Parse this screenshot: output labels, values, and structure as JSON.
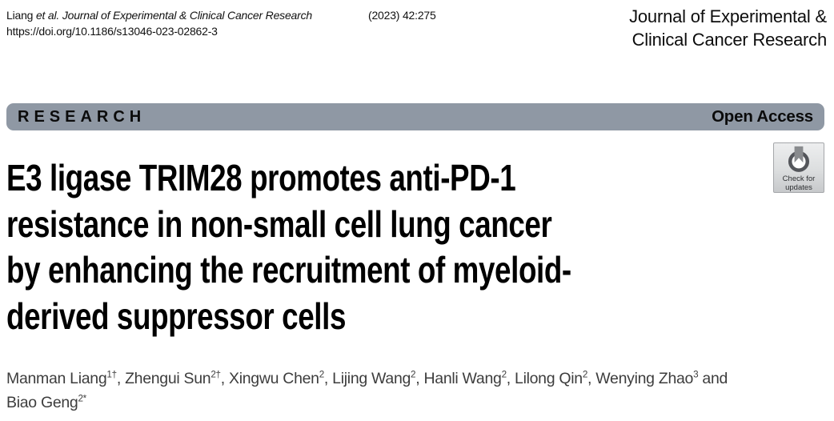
{
  "header": {
    "citation": {
      "authors": "Liang",
      "etal": "et al.",
      "journal": "Journal of Experimental & Clinical Cancer Research",
      "volume": "(2023) 42:275"
    },
    "doi": "https://doi.org/10.1186/s13046-023-02862-3",
    "journal_name_lines": [
      "Journal of Experimental &",
      "Clinical Cancer Research"
    ]
  },
  "banner": {
    "type_label": "RESEARCH",
    "access_label": "Open Access"
  },
  "crossmark": {
    "line1": "Check for",
    "line2": "updates"
  },
  "article": {
    "title_lines": [
      "E3 ligase TRIM28 promotes anti-PD-1",
      "resistance in non-small cell lung cancer",
      "by enhancing the recruitment of myeloid-",
      "derived suppressor cells"
    ],
    "authors": [
      {
        "name": "Manman Liang",
        "sup": "1†"
      },
      {
        "name": "Zhengui Sun",
        "sup": "2†"
      },
      {
        "name": "Xingwu Chen",
        "sup": "2"
      },
      {
        "name": "Lijing Wang",
        "sup": "2"
      },
      {
        "name": "Hanli Wang",
        "sup": "2"
      },
      {
        "name": "Lilong Qin",
        "sup": "2"
      },
      {
        "name": "Wenying Zhao",
        "sup": "3"
      },
      {
        "name": "Biao Geng",
        "sup": "2*"
      }
    ],
    "separator": ", ",
    "conjunction": "and",
    "line_break_after": 6
  },
  "colors": {
    "banner_bg": "#8F98A4",
    "title_text": "#000000",
    "authors_text": "#3d3d3d",
    "badge_ring": "#54565b",
    "badge_bookmark": "#898b8e"
  }
}
